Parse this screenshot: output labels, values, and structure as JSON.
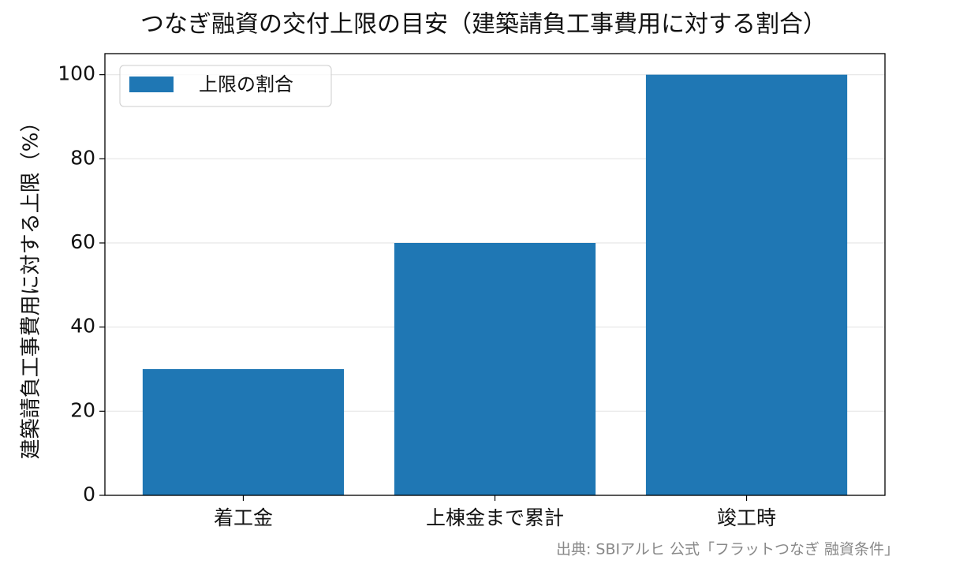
{
  "chart_data": {
    "type": "bar",
    "title": "つなぎ融資の交付上限の目安（建築請負工事費用に対する割合）",
    "y_label": "建築請負工事費用に対する上限（%）",
    "source": "出典: SBIアルヒ 公式「フラットつなぎ 融資条件」",
    "categories": [
      "着工金",
      "上棟金まで累計",
      "竣工時"
    ],
    "series": [
      {
        "name": "上限の割合",
        "color": "#1f77b4",
        "values": [
          30,
          60,
          100
        ]
      }
    ],
    "ylim": [
      0,
      105
    ],
    "yticks": [
      0,
      20,
      40,
      60,
      80,
      100
    ],
    "grid": true,
    "legend": "upper left"
  }
}
